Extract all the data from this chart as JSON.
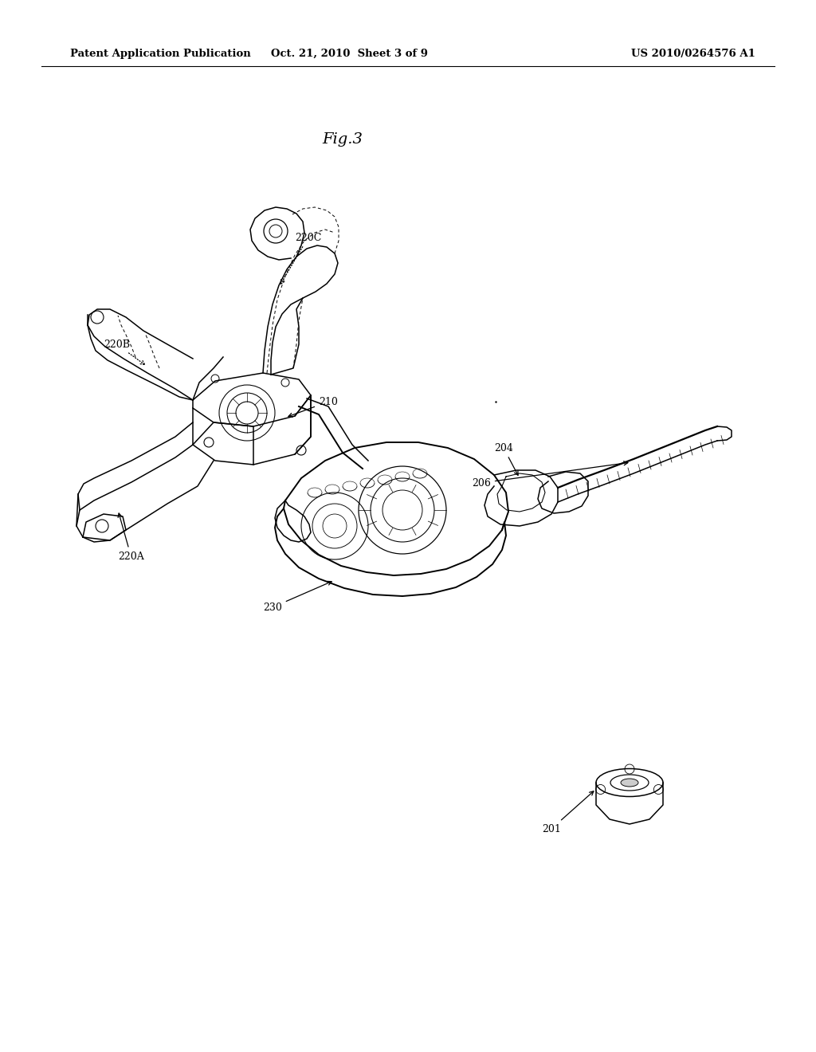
{
  "background_color": "#ffffff",
  "header_left": "Patent Application Publication",
  "header_center": "Oct. 21, 2010  Sheet 3 of 9",
  "header_right": "US 2010/0264576 A1",
  "fig_label": "Fig.3",
  "page_width": 10.24,
  "page_height": 13.2,
  "dpi": 100
}
